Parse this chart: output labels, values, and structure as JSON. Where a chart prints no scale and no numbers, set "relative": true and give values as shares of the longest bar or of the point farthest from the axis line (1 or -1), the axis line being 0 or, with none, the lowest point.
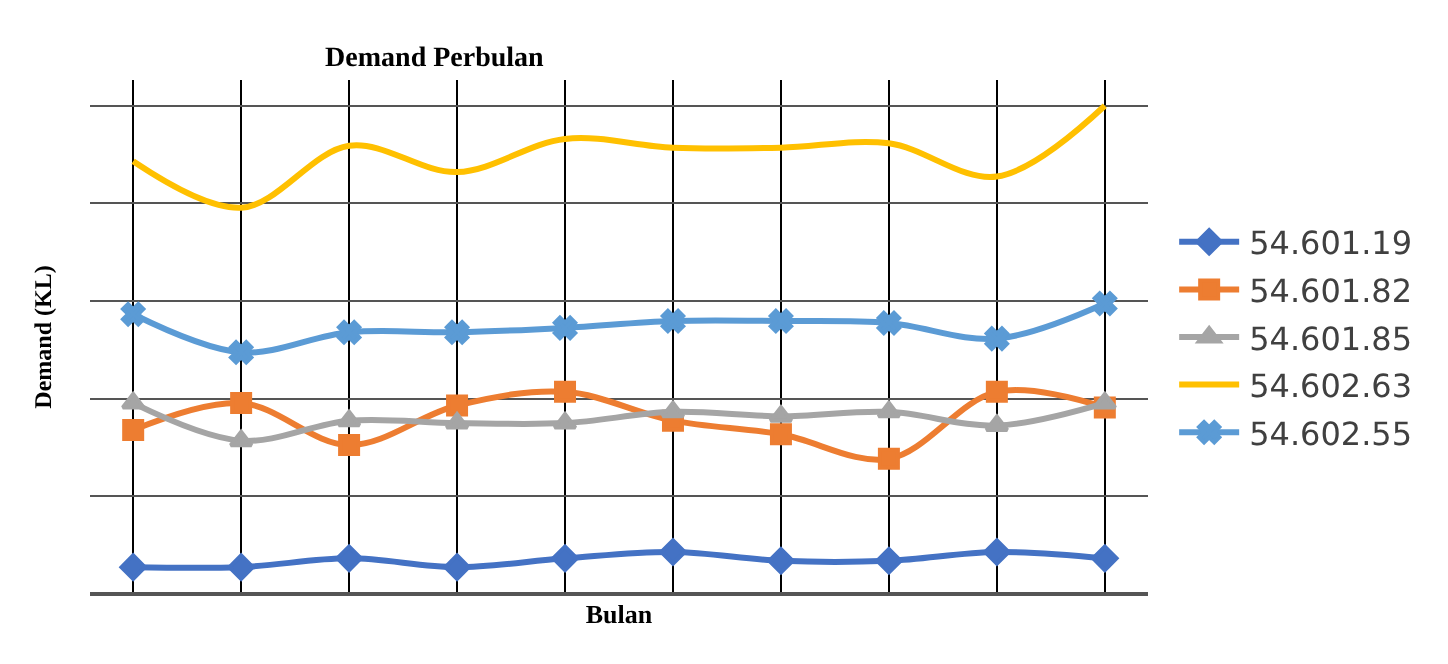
{
  "chart_data": {
    "type": "line",
    "title": "Demand Perbulan",
    "xlabel": "Bulan",
    "ylabel": "Demand (KL)",
    "relative": true,
    "grid": true,
    "legend": "right",
    "categories": [
      null,
      null,
      null,
      null,
      null,
      null,
      null,
      null,
      null,
      null
    ],
    "series": [
      {
        "name": "54.601.19",
        "color": "#4472c4",
        "marker": "diamond",
        "values": [
          0.055,
          0.055,
          0.073,
          0.055,
          0.073,
          0.086,
          0.068,
          0.068,
          0.086,
          0.073
        ]
      },
      {
        "name": "54.601.82",
        "color": "#ed7d31",
        "marker": "square",
        "values": [
          0.336,
          0.391,
          0.305,
          0.386,
          0.414,
          0.355,
          0.327,
          0.277,
          0.414,
          0.382
        ]
      },
      {
        "name": "54.601.85",
        "color": "#a5a5a5",
        "marker": "triangle",
        "values": [
          0.391,
          0.314,
          0.355,
          0.35,
          0.35,
          0.373,
          0.364,
          0.373,
          0.345,
          0.391
        ]
      },
      {
        "name": "54.602.63",
        "color": "#ffc000",
        "marker": "none",
        "values": [
          0.886,
          0.791,
          0.918,
          0.864,
          0.932,
          0.914,
          0.914,
          0.923,
          0.855,
          1
        ]
      },
      {
        "name": "54.602.55",
        "color": "#5b9bd5",
        "marker": "cross",
        "values": [
          0.573,
          0.495,
          0.536,
          0.536,
          0.545,
          0.559,
          0.559,
          0.555,
          0.523,
          0.595
        ]
      }
    ]
  }
}
